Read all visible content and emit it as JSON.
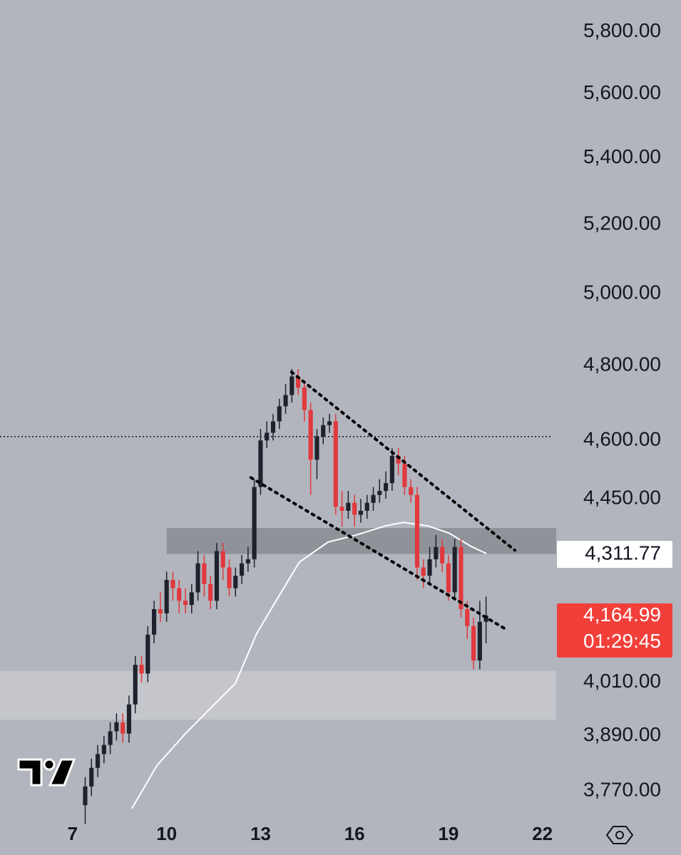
{
  "chart_data": {
    "type": "candlestick",
    "log_scale": true,
    "xlim": [
      4.68,
      22.44
    ],
    "ylim": [
      3725,
      5906
    ],
    "xticks": [
      7,
      10,
      13,
      16,
      19,
      22
    ],
    "yticks": [
      {
        "value": 5800,
        "label": "5,800.00"
      },
      {
        "value": 5600,
        "label": "5,600.00"
      },
      {
        "value": 5400,
        "label": "5,400.00"
      },
      {
        "value": 5200,
        "label": "5,200.00"
      },
      {
        "value": 5000,
        "label": "5,000.00"
      },
      {
        "value": 4800,
        "label": "4,800.00"
      },
      {
        "value": 4600,
        "label": "4,600.00"
      },
      {
        "value": 4450,
        "label": "4,450.00"
      },
      {
        "value": 4010,
        "label": "4,010.00"
      },
      {
        "value": 3890,
        "label": "3,890.00"
      },
      {
        "value": 3770,
        "label": "3,770.00"
      }
    ],
    "up_color": "#1e222d",
    "down_color": "#e0393e",
    "x": [
      7.4,
      7.6,
      7.8,
      8.0,
      8.2,
      8.4,
      8.6,
      8.8,
      9.0,
      9.2,
      9.4,
      9.6,
      9.8,
      10.0,
      10.2,
      10.4,
      10.6,
      10.8,
      11.0,
      11.2,
      11.4,
      11.6,
      11.8,
      12.0,
      12.2,
      12.4,
      12.6,
      12.8,
      13.0,
      13.2,
      13.4,
      13.6,
      13.8,
      14.0,
      14.2,
      14.4,
      14.6,
      14.8,
      15.0,
      15.2,
      15.4,
      15.6,
      15.8,
      16.0,
      16.2,
      16.4,
      16.6,
      16.8,
      17.0,
      17.2,
      17.4,
      17.6,
      17.8,
      18.0,
      18.2,
      18.4,
      18.6,
      18.8,
      19.0,
      19.2,
      19.4,
      19.6,
      19.8,
      20.0,
      20.2
    ],
    "open": [
      3740,
      3780,
      3820,
      3850,
      3870,
      3900,
      3920,
      3895,
      3960,
      4050,
      4030,
      4120,
      4180,
      4170,
      4250,
      4230,
      4200,
      4190,
      4220,
      4290,
      4240,
      4200,
      4320,
      4280,
      4230,
      4260,
      4290,
      4300,
      4480,
      4600,
      4620,
      4650,
      4690,
      4720,
      4770,
      4740,
      4680,
      4550,
      4610,
      4640,
      4650,
      4430,
      4420,
      4440,
      4410,
      4420,
      4440,
      4460,
      4470,
      4490,
      4560,
      4540,
      4480,
      4460,
      4280,
      4260,
      4300,
      4330,
      4290,
      4220,
      4330,
      4180,
      4140,
      4060,
      4150
    ],
    "high": [
      3800,
      3840,
      3870,
      3890,
      3920,
      3940,
      3940,
      3980,
      4070,
      4070,
      4140,
      4200,
      4220,
      4270,
      4270,
      4250,
      4230,
      4240,
      4320,
      4310,
      4260,
      4340,
      4340,
      4300,
      4280,
      4310,
      4330,
      4500,
      4630,
      4650,
      4670,
      4710,
      4750,
      4790,
      4790,
      4760,
      4700,
      4630,
      4660,
      4670,
      4670,
      4470,
      4470,
      4460,
      4450,
      4460,
      4480,
      4500,
      4520,
      4580,
      4580,
      4560,
      4500,
      4480,
      4300,
      4330,
      4360,
      4350,
      4310,
      4350,
      4350,
      4200,
      4160,
      4200,
      4210
    ],
    "low": [
      3700,
      3760,
      3800,
      3830,
      3850,
      3880,
      3875,
      3875,
      3940,
      4010,
      4010,
      4100,
      4150,
      4150,
      4200,
      4170,
      4170,
      4170,
      4200,
      4210,
      4180,
      4180,
      4250,
      4210,
      4210,
      4240,
      4270,
      4280,
      4460,
      4580,
      4600,
      4630,
      4670,
      4700,
      4720,
      4650,
      4460,
      4500,
      4590,
      4620,
      4410,
      4380,
      4400,
      4380,
      4390,
      4400,
      4420,
      4440,
      4450,
      4470,
      4510,
      4460,
      4440,
      4250,
      4230,
      4240,
      4280,
      4270,
      4200,
      4200,
      4160,
      4110,
      4040,
      4040,
      4100
    ],
    "close": [
      3780,
      3820,
      3850,
      3870,
      3900,
      3920,
      3895,
      3960,
      4050,
      4030,
      4120,
      4180,
      4170,
      4250,
      4230,
      4200,
      4190,
      4220,
      4290,
      4240,
      4200,
      4320,
      4280,
      4230,
      4260,
      4290,
      4300,
      4480,
      4600,
      4620,
      4650,
      4690,
      4720,
      4770,
      4740,
      4680,
      4550,
      4610,
      4640,
      4650,
      4430,
      4420,
      4440,
      4410,
      4420,
      4440,
      4460,
      4470,
      4490,
      4560,
      4540,
      4480,
      4460,
      4280,
      4260,
      4300,
      4330,
      4290,
      4220,
      4330,
      4180,
      4140,
      4060,
      4150,
      4165
    ],
    "moving_average": {
      "color": "#ffffff",
      "x": [
        8.89,
        9.69,
        10.6,
        11.51,
        12.19,
        12.88,
        13.56,
        14.24,
        15.15,
        16.07,
        16.98,
        17.55,
        18.35,
        19.03,
        19.71,
        20.21
      ],
      "values": [
        3733,
        3825,
        3895,
        3959,
        4007,
        4123,
        4208,
        4293,
        4342,
        4360,
        4382,
        4391,
        4382,
        4364,
        4332,
        4314
      ]
    },
    "trendlines": [
      {
        "x": [
          13.99,
          21.12
        ],
        "values": [
          4782,
          4322
        ]
      },
      {
        "x": [
          12.69,
          20.8
        ],
        "values": [
          4504,
          4134
        ]
      }
    ],
    "price_line": 4610,
    "zones": [
      {
        "values": [
          4313,
          4377
        ],
        "x_start": 10.0,
        "color": "#8f9299"
      },
      {
        "values": [
          3926,
          4036
        ],
        "color": "#c4c6cc"
      }
    ],
    "price_labels": [
      {
        "value": 4311.77,
        "label": "4,311.77",
        "color": "#ffffff"
      },
      {
        "value": 4164.99,
        "label": "4,164.99",
        "countdown": "01:29:45",
        "color": "#f23f3a"
      }
    ]
  }
}
